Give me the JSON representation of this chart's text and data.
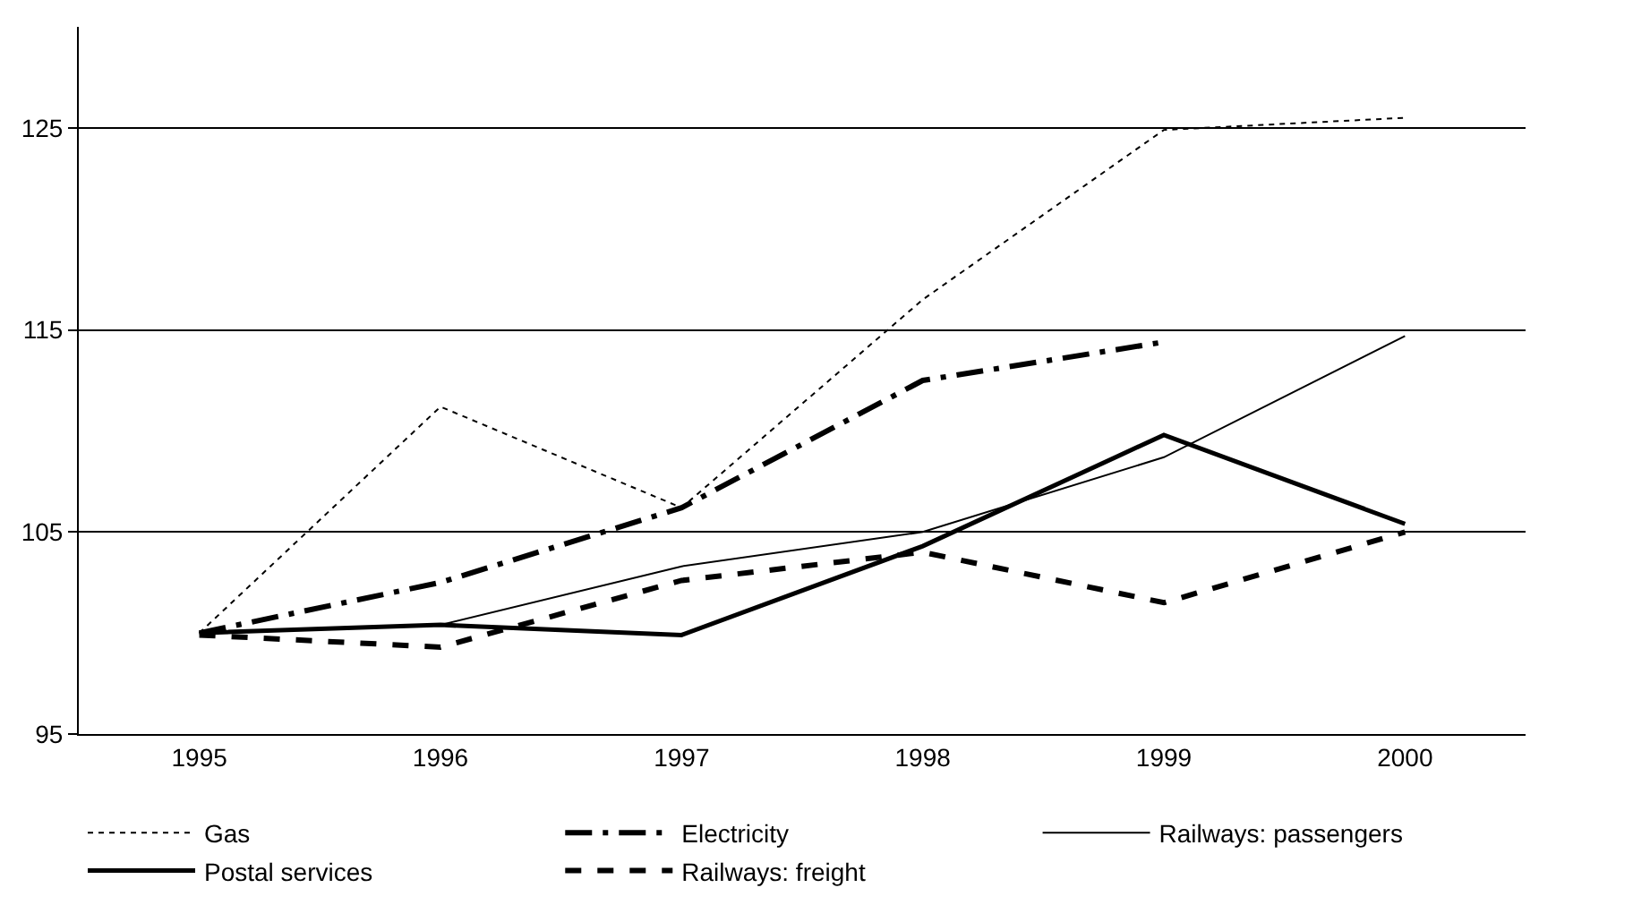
{
  "chart_data": {
    "type": "line",
    "categories": [
      "1995",
      "1996",
      "1997",
      "1998",
      "1999",
      "2000"
    ],
    "series": [
      {
        "name": "Gas",
        "color": "#000000",
        "line_style": "dotted",
        "values": [
          100,
          111.2,
          106.2,
          116.5,
          124.9,
          125.5
        ]
      },
      {
        "name": "Electricity",
        "color": "#000000",
        "line_style": "dashdot",
        "values": [
          100,
          102.5,
          106.2,
          112.5,
          114.4,
          null
        ]
      },
      {
        "name": "Railways: passengers",
        "color": "#000000",
        "line_style": "solid",
        "values": [
          100,
          100.4,
          103.3,
          105,
          108.7,
          114.7
        ]
      },
      {
        "name": "Postal services",
        "color": "#000000",
        "line_style": "solid",
        "values": [
          100,
          100.4,
          99.9,
          104.3,
          109.8,
          105.4
        ]
      },
      {
        "name": "Railways: freight",
        "color": "#000000",
        "line_style": "dashed",
        "values": [
          99.9,
          99.3,
          102.6,
          104,
          101.5,
          105
        ]
      }
    ],
    "ylim": [
      95,
      130
    ],
    "yticks": [
      95,
      105,
      115,
      125
    ],
    "grid": "y",
    "legend": "bottom",
    "marker": "none"
  }
}
